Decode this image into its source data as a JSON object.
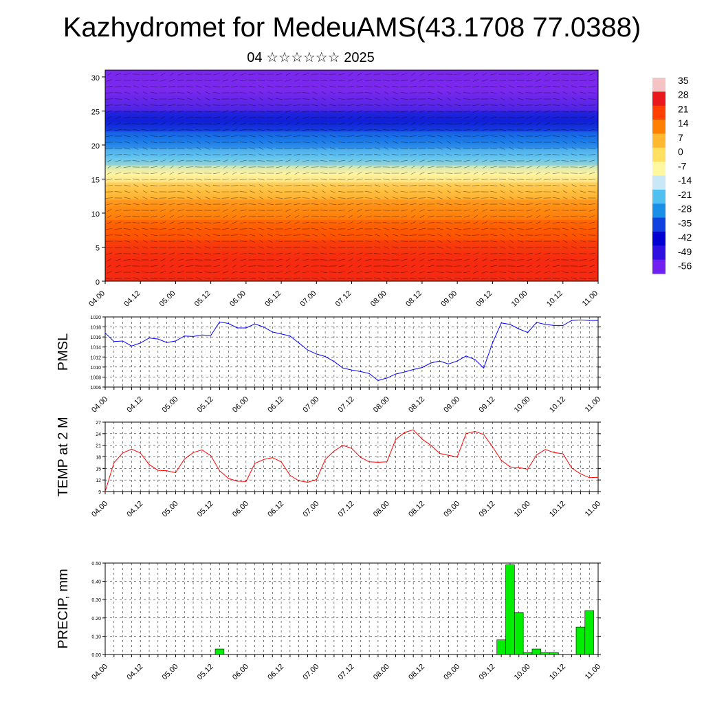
{
  "header": {
    "title": "Kazhydromet for MedeuAMS(43.1708 77.0388)",
    "subtitle": "04 ☆☆☆☆☆☆ 2025"
  },
  "chart_data": [
    {
      "type": "heatmap",
      "name": "temperature-wind-cross-section",
      "x_ticks": [
        "04.00",
        "04.12",
        "05.00",
        "05.12",
        "06.00",
        "06.12",
        "07.00",
        "07.12",
        "08.00",
        "08.12",
        "09.00",
        "09.12",
        "10.00",
        "10.12",
        "11.00"
      ],
      "y_ticks": [
        "0",
        "5",
        "10",
        "15",
        "20",
        "25",
        "30"
      ],
      "ylim": [
        0,
        31
      ],
      "colorbar": {
        "labels": [
          "35",
          "28",
          "21",
          "14",
          "7",
          "0",
          "-7",
          "-14",
          "-21",
          "-28",
          "-35",
          "-42",
          "-49",
          "-56"
        ],
        "colors": [
          "#f4c4c4",
          "#e8181c",
          "#ff4000",
          "#ff8000",
          "#ffb830",
          "#ffe060",
          "#fff8a0",
          "#c8e8f8",
          "#50c0f0",
          "#1890e8",
          "#1040e0",
          "#0000d0",
          "#3010e0",
          "#7020f0"
        ]
      },
      "bands": [
        {
          "from": 0,
          "to": 6,
          "color": "#f52a10"
        },
        {
          "from": 6,
          "to": 9,
          "color": "#ff5a00"
        },
        {
          "from": 9,
          "to": 12,
          "color": "#ff8a10"
        },
        {
          "from": 12,
          "to": 14.5,
          "color": "#ffc040"
        },
        {
          "from": 14.5,
          "to": 17,
          "color": "#fff4a0"
        },
        {
          "from": 17,
          "to": 19.5,
          "color": "#60c4f0"
        },
        {
          "from": 19.5,
          "to": 22,
          "color": "#1a78e8"
        },
        {
          "from": 22,
          "to": 25,
          "color": "#1020d8"
        },
        {
          "from": 25,
          "to": 31,
          "color": "#7a28ee"
        }
      ]
    },
    {
      "type": "line",
      "name": "PMSL",
      "ylabel": "PMSL",
      "ylim": [
        1006,
        1020
      ],
      "y_ticks": [
        "1006",
        "1008",
        "1010",
        "1012",
        "1014",
        "1016",
        "1018",
        "1020"
      ],
      "x_ticks": [
        "04.00",
        "04.12",
        "05.00",
        "05.12",
        "06.00",
        "06.12",
        "07.00",
        "07.12",
        "08.00",
        "08.12",
        "09.00",
        "09.12",
        "10.00",
        "10.12",
        "11.00"
      ],
      "color": "#0000ff",
      "x": [
        0,
        1,
        2,
        3,
        4,
        5,
        6,
        7,
        8,
        9,
        10,
        11,
        12,
        13,
        14,
        15,
        16,
        17,
        18,
        19,
        20,
        21,
        22,
        23,
        24,
        25,
        26,
        27,
        28,
        29,
        30,
        31,
        32,
        33,
        34,
        35,
        36,
        37,
        38,
        39,
        40,
        41,
        42,
        43,
        44,
        45,
        46,
        47,
        48,
        49,
        50,
        51,
        52,
        53,
        54,
        55,
        56
      ],
      "values": [
        1016.8,
        1015.1,
        1015.2,
        1014.2,
        1014.8,
        1015.8,
        1015.6,
        1014.9,
        1015.2,
        1016.2,
        1016.1,
        1016.4,
        1016.3,
        1019.0,
        1018.7,
        1017.8,
        1017.8,
        1018.6,
        1018.0,
        1017.0,
        1016.6,
        1016.2,
        1014.8,
        1013.4,
        1012.6,
        1012.1,
        1011.1,
        1009.8,
        1009.4,
        1009.1,
        1008.7,
        1007.3,
        1007.8,
        1008.6,
        1009.0,
        1009.5,
        1009.9,
        1010.8,
        1011.2,
        1010.6,
        1011.2,
        1012.2,
        1011.5,
        1009.8,
        1014.8,
        1018.8,
        1018.5,
        1017.6,
        1016.9,
        1018.9,
        1018.5,
        1018.3,
        1018.3,
        1019.3,
        1019.4,
        1019.3,
        1019.3
      ]
    },
    {
      "type": "line",
      "name": "TEMP at 2 M",
      "ylabel": "TEMP at 2 M",
      "ylim": [
        9,
        27
      ],
      "y_ticks": [
        "9",
        "12",
        "15",
        "18",
        "21",
        "24",
        "27"
      ],
      "x_ticks": [
        "04.00",
        "04.12",
        "05.00",
        "05.12",
        "06.00",
        "06.12",
        "07.00",
        "07.12",
        "08.00",
        "08.12",
        "09.00",
        "09.12",
        "10.00",
        "10.12",
        "11.00"
      ],
      "color": "#ff0000",
      "x": [
        0,
        1,
        2,
        3,
        4,
        5,
        6,
        7,
        8,
        9,
        10,
        11,
        12,
        13,
        14,
        15,
        16,
        17,
        18,
        19,
        20,
        21,
        22,
        23,
        24,
        25,
        26,
        27,
        28,
        29,
        30,
        31,
        32,
        33,
        34,
        35,
        36,
        37,
        38,
        39,
        40,
        41,
        42,
        43,
        44,
        45,
        46,
        47,
        48,
        49,
        50,
        51,
        52,
        53,
        54,
        55,
        56
      ],
      "values": [
        9.0,
        16.5,
        19.0,
        20.0,
        19.0,
        16.0,
        14.5,
        14.4,
        13.9,
        17.4,
        19.1,
        19.8,
        18.3,
        14.4,
        12.4,
        11.7,
        11.6,
        16.3,
        17.3,
        17.8,
        16.7,
        13.2,
        11.8,
        11.4,
        12.1,
        17.3,
        19.5,
        21.0,
        20.2,
        17.9,
        16.7,
        16.6,
        16.7,
        22.5,
        24.3,
        25.0,
        22.6,
        21.0,
        18.9,
        18.4,
        18.0,
        24.0,
        24.6,
        23.8,
        20.6,
        17.1,
        15.4,
        15.2,
        14.8,
        18.5,
        19.9,
        19.1,
        18.8,
        15.1,
        13.6,
        12.6,
        12.7
      ]
    },
    {
      "type": "bar",
      "name": "PRECIP, mm",
      "ylabel": "PRECIP, mm",
      "ylim": [
        0,
        0.5
      ],
      "y_ticks": [
        "0.00",
        "0.10",
        "0.20",
        "0.30",
        "0.40",
        "0.50"
      ],
      "x_ticks": [
        "04.00",
        "04.12",
        "05.00",
        "05.12",
        "06.00",
        "06.12",
        "07.00",
        "07.12",
        "08.00",
        "08.12",
        "09.00",
        "09.12",
        "10.00",
        "10.12",
        "11.00"
      ],
      "color": "#00ee00",
      "x": [
        13,
        45,
        46,
        47,
        48,
        49,
        50,
        51,
        52,
        53,
        54,
        55
      ],
      "values": [
        0.03,
        0.08,
        0.49,
        0.23,
        0.01,
        0.03,
        0.01,
        0.01,
        0.0,
        0.0,
        0.15,
        0.24
      ]
    }
  ]
}
